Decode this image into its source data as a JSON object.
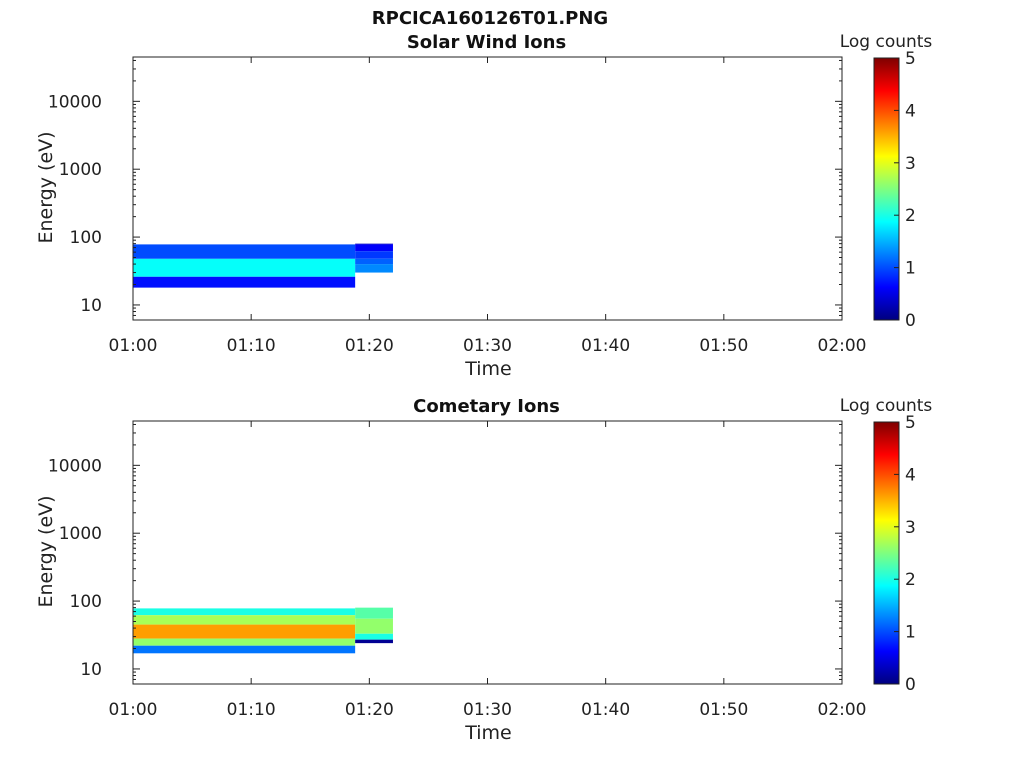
{
  "figure_title": "RPCICA160126T01.PNG",
  "colormap": [
    "#00007f",
    "#0000ff",
    "#007fff",
    "#00ffff",
    "#7fff7f",
    "#ffff00",
    "#ff7f00",
    "#ff0000",
    "#7f0000"
  ],
  "chart_data": [
    {
      "type": "heatmap",
      "title": "Solar Wind Ions",
      "xlabel": "Time",
      "ylabel": "Energy (eV)",
      "x_ticks": [
        "01:00",
        "01:10",
        "01:20",
        "01:30",
        "01:40",
        "01:50",
        "02:00"
      ],
      "x_range_minutes": [
        0,
        60
      ],
      "y_ticks": [
        "10",
        "100",
        "1000",
        "10000"
      ],
      "y_scale": "log",
      "y_range": [
        6,
        45000
      ],
      "colorbar": {
        "label": "Log counts",
        "ticks": [
          "0",
          "1",
          "2",
          "3",
          "4",
          "5"
        ],
        "range": [
          0,
          5
        ]
      },
      "bands": [
        {
          "t0": 0,
          "t1": 18.8,
          "e0": 26,
          "e1": 48,
          "level": 1.9
        },
        {
          "t0": 0,
          "t1": 18.8,
          "e0": 48,
          "e1": 78,
          "level": 1.0
        },
        {
          "t0": 0,
          "t1": 18.8,
          "e0": 18,
          "e1": 26,
          "level": 0.7
        },
        {
          "t0": 18.8,
          "t1": 22.0,
          "e0": 78,
          "e1": 80,
          "level": 0.3
        },
        {
          "t0": 18.8,
          "t1": 22.0,
          "e0": 62,
          "e1": 78,
          "level": 0.6
        },
        {
          "t0": 18.8,
          "t1": 22.0,
          "e0": 48,
          "e1": 62,
          "level": 0.9
        },
        {
          "t0": 18.8,
          "t1": 22.0,
          "e0": 40,
          "e1": 48,
          "level": 1.1
        },
        {
          "t0": 18.8,
          "t1": 22.0,
          "e0": 30,
          "e1": 40,
          "level": 1.3
        }
      ]
    },
    {
      "type": "heatmap",
      "title": "Cometary Ions",
      "xlabel": "Time",
      "ylabel": "Energy (eV)",
      "x_ticks": [
        "01:00",
        "01:10",
        "01:20",
        "01:30",
        "01:40",
        "01:50",
        "02:00"
      ],
      "x_range_minutes": [
        0,
        60
      ],
      "y_ticks": [
        "10",
        "100",
        "1000",
        "10000"
      ],
      "y_scale": "log",
      "y_range": [
        6,
        45000
      ],
      "colorbar": {
        "label": "Log counts",
        "ticks": [
          "0",
          "1",
          "2",
          "3",
          "4",
          "5"
        ],
        "range": [
          0,
          5
        ]
      },
      "bands": [
        {
          "t0": 0,
          "t1": 18.8,
          "e0": 62,
          "e1": 78,
          "level": 2.0
        },
        {
          "t0": 0,
          "t1": 18.8,
          "e0": 45,
          "e1": 62,
          "level": 2.7
        },
        {
          "t0": 0,
          "t1": 18.8,
          "e0": 28,
          "e1": 45,
          "level": 3.6
        },
        {
          "t0": 0,
          "t1": 18.8,
          "e0": 22,
          "e1": 28,
          "level": 2.6
        },
        {
          "t0": 0,
          "t1": 18.8,
          "e0": 17,
          "e1": 22,
          "level": 1.2
        },
        {
          "t0": 18.8,
          "t1": 22.0,
          "e0": 55,
          "e1": 80,
          "level": 2.3
        },
        {
          "t0": 18.8,
          "t1": 22.0,
          "e0": 33,
          "e1": 55,
          "level": 2.6
        },
        {
          "t0": 18.8,
          "t1": 22.0,
          "e0": 27,
          "e1": 33,
          "level": 2.0
        },
        {
          "t0": 18.8,
          "t1": 22.0,
          "e0": 24,
          "e1": 27,
          "level": 0.1
        }
      ]
    }
  ]
}
